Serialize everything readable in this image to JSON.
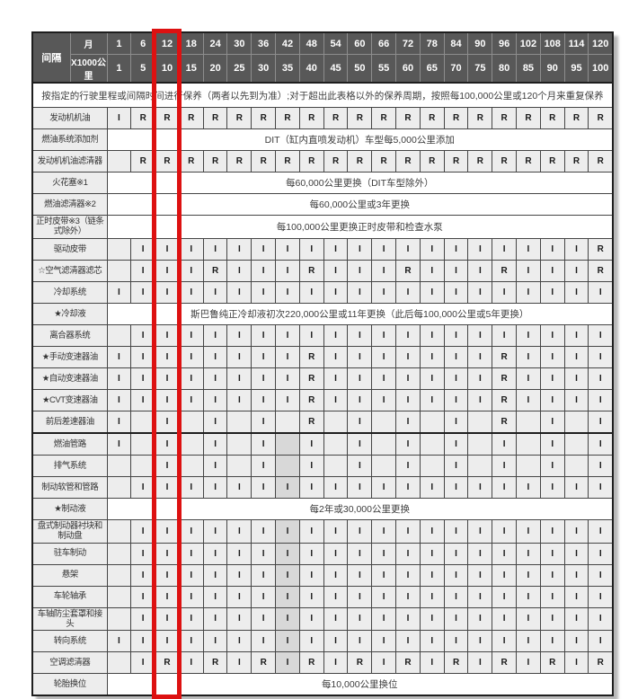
{
  "colors": {
    "header_bg": "#585858",
    "cell_bg": "#ededed",
    "shaded_bg": "#d8d8d8",
    "border": "#454545",
    "highlight_red": "#dd1111"
  },
  "table": {
    "corner_label": "间隔",
    "month_label": "月",
    "km_label": "X1000公里",
    "months": [
      "1",
      "6",
      "12",
      "18",
      "24",
      "30",
      "36",
      "42",
      "48",
      "54",
      "60",
      "66",
      "72",
      "78",
      "84",
      "90",
      "96",
      "102",
      "108",
      "114",
      "120"
    ],
    "km": [
      "1",
      "5",
      "10",
      "15",
      "20",
      "25",
      "30",
      "35",
      "40",
      "45",
      "50",
      "55",
      "60",
      "65",
      "70",
      "75",
      "80",
      "85",
      "90",
      "95",
      "100"
    ],
    "note": "按指定的行驶里程或间隔时间进行保养（两者以先到为准）;对于超出此表格以外的保养周期，按照每100,000公里或120个月来重复保养",
    "highlight_month": "12",
    "legend": {
      "inspect": "I",
      "replace": "R"
    },
    "rows": [
      {
        "label": "发动机机油",
        "cells": [
          "I",
          "R",
          "R",
          "R",
          "R",
          "R",
          "R",
          "R",
          "R",
          "R",
          "R",
          "R",
          "R",
          "R",
          "R",
          "R",
          "R",
          "R",
          "R",
          "R",
          "R"
        ]
      },
      {
        "label": "燃油系统添加剂",
        "text": "DIT（缸内直喷发动机）车型每5,000公里添加"
      },
      {
        "label": "发动机机油滤清器",
        "cells": [
          "",
          "R",
          "R",
          "R",
          "R",
          "R",
          "R",
          "R",
          "R",
          "R",
          "R",
          "R",
          "R",
          "R",
          "R",
          "R",
          "R",
          "R",
          "R",
          "R",
          "R"
        ]
      },
      {
        "label": "火花塞※1",
        "text": "每60,000公里更换（DIT车型除外）"
      },
      {
        "label": "燃油滤清器※2",
        "text": "每60,000公里或3年更换"
      },
      {
        "label": "正时皮带※3（链条式除外）",
        "text": "每100,000公里更换正时皮带和检查水泵"
      },
      {
        "label": "驱动皮带",
        "cells": [
          "",
          "I",
          "I",
          "I",
          "I",
          "I",
          "I",
          "I",
          "I",
          "I",
          "I",
          "I",
          "I",
          "I",
          "I",
          "I",
          "I",
          "I",
          "I",
          "I",
          "R"
        ]
      },
      {
        "label": "☆空气滤清器滤芯",
        "cells": [
          "",
          "I",
          "I",
          "I",
          "R",
          "I",
          "I",
          "I",
          "R",
          "I",
          "I",
          "I",
          "R",
          "I",
          "I",
          "I",
          "R",
          "I",
          "I",
          "I",
          "R"
        ]
      },
      {
        "label": "冷却系统",
        "cells": [
          "I",
          "I",
          "I",
          "I",
          "I",
          "I",
          "I",
          "I",
          "I",
          "I",
          "I",
          "I",
          "I",
          "I",
          "I",
          "I",
          "I",
          "I",
          "I",
          "I",
          "I"
        ]
      },
      {
        "label": "★冷却液",
        "text": "斯巴鲁纯正冷却液初次220,000公里或11年更换（此后每100,000公里或5年更换）"
      },
      {
        "label": "离合器系统",
        "cells": [
          "",
          "I",
          "I",
          "I",
          "I",
          "I",
          "I",
          "I",
          "I",
          "I",
          "I",
          "I",
          "I",
          "I",
          "I",
          "I",
          "I",
          "I",
          "I",
          "I",
          "I"
        ]
      },
      {
        "label": "★手动变速器油",
        "cells": [
          "I",
          "I",
          "I",
          "I",
          "I",
          "I",
          "I",
          "I",
          "R",
          "I",
          "I",
          "I",
          "I",
          "I",
          "I",
          "I",
          "R",
          "I",
          "I",
          "I",
          "I"
        ]
      },
      {
        "label": "★自动变速器油",
        "cells": [
          "I",
          "I",
          "I",
          "I",
          "I",
          "I",
          "I",
          "I",
          "R",
          "I",
          "I",
          "I",
          "I",
          "I",
          "I",
          "I",
          "R",
          "I",
          "I",
          "I",
          "I"
        ]
      },
      {
        "label": "★CVT变速器油",
        "cells": [
          "I",
          "I",
          "I",
          "I",
          "I",
          "I",
          "I",
          "I",
          "R",
          "I",
          "I",
          "I",
          "I",
          "I",
          "I",
          "I",
          "R",
          "I",
          "I",
          "I",
          "I"
        ]
      },
      {
        "label": "前后差速器油",
        "cells": [
          "I",
          "",
          "I",
          "",
          "I",
          "",
          "I",
          "",
          "R",
          "",
          "I",
          "",
          "I",
          "",
          "I",
          "",
          "R",
          "",
          "I",
          "",
          "I"
        ]
      },
      {
        "label": "燃油管路",
        "section_start": true,
        "cells": [
          "I",
          "",
          "I",
          "",
          "I",
          "",
          "I",
          "",
          "I",
          "",
          "I",
          "",
          "I",
          "",
          "I",
          "",
          "I",
          "",
          "I",
          "",
          "I"
        ],
        "shaded_cols": [
          7
        ]
      },
      {
        "label": "排气系统",
        "cells": [
          "",
          "",
          "I",
          "",
          "I",
          "",
          "I",
          "",
          "I",
          "",
          "I",
          "",
          "I",
          "",
          "I",
          "",
          "I",
          "",
          "I",
          "",
          "I"
        ],
        "shaded_cols": [
          7
        ]
      },
      {
        "label": "制动软管和管路",
        "cells": [
          "",
          "I",
          "I",
          "I",
          "I",
          "I",
          "I",
          "I",
          "I",
          "I",
          "I",
          "I",
          "I",
          "I",
          "I",
          "I",
          "I",
          "I",
          "I",
          "I",
          "I"
        ],
        "shaded_cols": [
          7
        ]
      },
      {
        "label": "★制动液",
        "text": "每2年或30,000公里更换"
      },
      {
        "label": "盘式制动器衬块和制动盘",
        "cells": [
          "",
          "I",
          "I",
          "I",
          "I",
          "I",
          "I",
          "I",
          "I",
          "I",
          "I",
          "I",
          "I",
          "I",
          "I",
          "I",
          "I",
          "I",
          "I",
          "I",
          "I"
        ],
        "shaded_cols": [
          7
        ]
      },
      {
        "label": "驻车制动",
        "cells": [
          "",
          "I",
          "I",
          "I",
          "I",
          "I",
          "I",
          "I",
          "I",
          "I",
          "I",
          "I",
          "I",
          "I",
          "I",
          "I",
          "I",
          "I",
          "I",
          "I",
          "I"
        ],
        "shaded_cols": [
          7
        ]
      },
      {
        "label": "悬架",
        "cells": [
          "",
          "I",
          "I",
          "I",
          "I",
          "I",
          "I",
          "I",
          "I",
          "I",
          "I",
          "I",
          "I",
          "I",
          "I",
          "I",
          "I",
          "I",
          "I",
          "I",
          "I"
        ],
        "shaded_cols": [
          7
        ]
      },
      {
        "label": "车轮轴承",
        "cells": [
          "",
          "I",
          "I",
          "I",
          "I",
          "I",
          "I",
          "I",
          "I",
          "I",
          "I",
          "I",
          "I",
          "I",
          "I",
          "I",
          "I",
          "I",
          "I",
          "I",
          "I"
        ],
        "shaded_cols": [
          7
        ]
      },
      {
        "label": "车轴防尘套罩和接头",
        "cells": [
          "",
          "I",
          "I",
          "I",
          "I",
          "I",
          "I",
          "I",
          "I",
          "I",
          "I",
          "I",
          "I",
          "I",
          "I",
          "I",
          "I",
          "I",
          "I",
          "I",
          "I"
        ],
        "shaded_cols": [
          7
        ]
      },
      {
        "label": "转向系统",
        "cells": [
          "I",
          "I",
          "I",
          "I",
          "I",
          "I",
          "I",
          "I",
          "I",
          "I",
          "I",
          "I",
          "I",
          "I",
          "I",
          "I",
          "I",
          "I",
          "I",
          "I",
          "I"
        ],
        "shaded_cols": [
          7
        ]
      },
      {
        "label": "空调滤清器",
        "cells": [
          "",
          "I",
          "R",
          "I",
          "R",
          "I",
          "R",
          "I",
          "R",
          "I",
          "R",
          "I",
          "R",
          "I",
          "R",
          "I",
          "R",
          "I",
          "R",
          "I",
          "R"
        ],
        "shaded_cols": [
          7
        ]
      },
      {
        "label": "轮胎换位",
        "text": "每10,000公里换位"
      }
    ]
  }
}
